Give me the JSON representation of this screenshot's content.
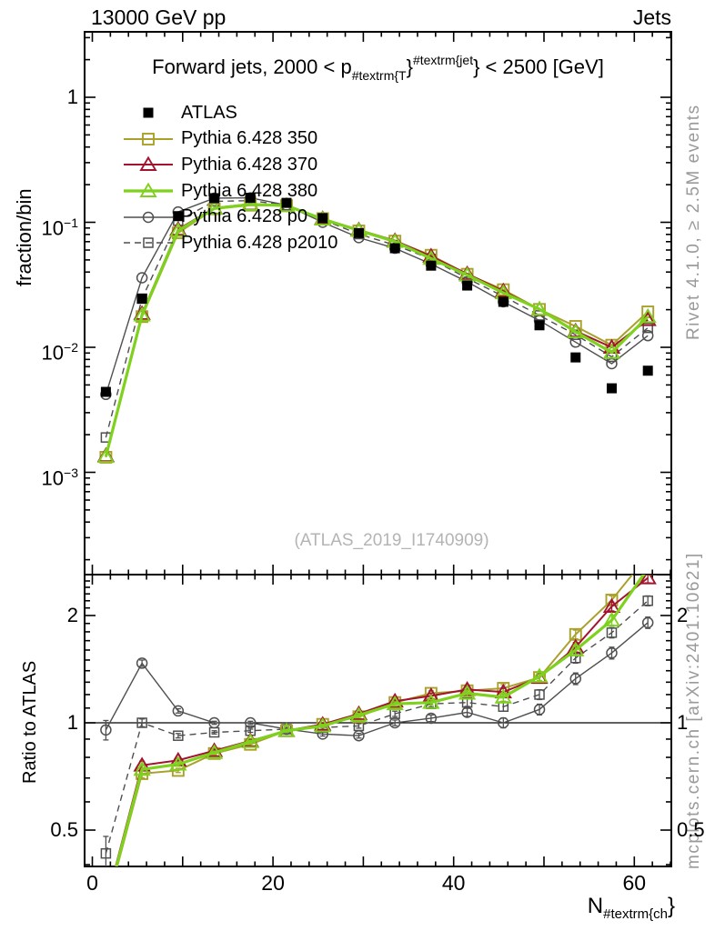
{
  "header": {
    "left": "13000 GeV pp",
    "right": "Jets"
  },
  "title": {
    "prefix": "Forward jets, 2000 < p",
    "sub": "#textrm{T",
    "brace": "}",
    "sup": "#textrm{jet",
    "suffix": "} < 2500 [GeV]"
  },
  "watermark": "(ATLAS_2019_I1740909)",
  "side_notes": {
    "top": "Rivet 4.1.0, ≥ 2.5M events",
    "bottom": "mcplots.cern.ch [arXiv:2401.10621]"
  },
  "axes": {
    "y_main_label": "fraction/bin",
    "y_ratio_label": "Ratio to ATLAS",
    "x_label": {
      "prefix": "N",
      "sub": "#textrm{ch",
      "suffix": "}"
    },
    "y_main_ticks": [
      {
        "value": 1,
        "base": "1",
        "exp": ""
      },
      {
        "value": 0.1,
        "base": "10",
        "exp": "−1"
      },
      {
        "value": 0.01,
        "base": "10",
        "exp": "−2"
      },
      {
        "value": 0.001,
        "base": "10",
        "exp": "−3"
      }
    ],
    "ratio_ticks": [
      {
        "value": 2,
        "label": "2"
      },
      {
        "value": 1,
        "label": "1"
      },
      {
        "value": 0.5,
        "label": "0.5"
      }
    ],
    "x_ticks": [
      {
        "value": 0,
        "label": "0"
      },
      {
        "value": 20,
        "label": "20"
      },
      {
        "value": 40,
        "label": "40"
      },
      {
        "value": 60,
        "label": "60"
      }
    ]
  },
  "chart_data": {
    "type": "line",
    "title": "Forward jets, 2000 < pT_jet < 2500 [GeV]",
    "xlabel": "N_ch",
    "xlim": [
      -0.85,
      64
    ],
    "x": [
      1.5,
      5.5,
      9.5,
      13.5,
      17.5,
      21.5,
      25.5,
      29.5,
      33.5,
      37.5,
      41.5,
      45.5,
      49.5,
      53.5,
      57.5,
      61.5
    ],
    "panels": {
      "main": {
        "ylabel": "fraction/bin",
        "yscale": "log",
        "ylim": [
          0.00015,
          3.3
        ],
        "grid": false
      },
      "ratio": {
        "ylabel": "Ratio to ATLAS",
        "yscale": "log",
        "ylim": [
          0.395,
          2.6
        ],
        "grid": false,
        "ref_line": 1
      }
    },
    "legend_position": "top-left",
    "series": [
      {
        "name": "ATLAS",
        "color": "#000000",
        "marker": "filled-square",
        "line": "none",
        "width": 0,
        "values": [
          0.0044,
          0.0245,
          0.112,
          0.156,
          0.157,
          0.143,
          0.108,
          0.082,
          0.062,
          0.045,
          0.0312,
          0.0231,
          0.015,
          0.0083,
          0.0047,
          0.0065
        ],
        "ratio": [],
        "ratio_err": []
      },
      {
        "name": "Pythia 6.428 350",
        "color": "#a9a12b",
        "marker": "open-square",
        "line": "solid",
        "width": 2,
        "values": [
          0.00132,
          0.0176,
          0.0823,
          0.128,
          0.137,
          0.136,
          0.107,
          0.0853,
          0.0707,
          0.0545,
          0.0384,
          0.0289,
          0.0201,
          0.0147,
          0.0104,
          0.0192
        ],
        "ratio": [
          0.3,
          0.72,
          0.735,
          0.82,
          0.87,
          0.95,
          0.99,
          1.04,
          1.14,
          1.21,
          1.23,
          1.25,
          1.34,
          1.77,
          2.21,
          2.95
        ],
        "ratio_err": [
          0.05,
          0.02,
          0.01,
          0.008,
          0.008,
          0.008,
          0.01,
          0.012,
          0.015,
          0.02,
          0.025,
          0.03,
          0.035,
          0.05,
          0.06,
          0.08
        ]
      },
      {
        "name": "Pythia 6.428 370",
        "color": "#a3132f",
        "marker": "open-triangle",
        "line": "solid",
        "width": 2,
        "values": [
          0.00136,
          0.0186,
          0.0879,
          0.13,
          0.14,
          0.136,
          0.107,
          0.0869,
          0.0713,
          0.0536,
          0.0387,
          0.0282,
          0.0201,
          0.0135,
          0.01,
          0.0166
        ],
        "ratio": [
          0.31,
          0.76,
          0.785,
          0.835,
          0.89,
          0.95,
          0.99,
          1.06,
          1.15,
          1.19,
          1.24,
          1.22,
          1.34,
          1.63,
          2.12,
          2.55
        ],
        "ratio_err": [
          0.05,
          0.02,
          0.01,
          0.008,
          0.008,
          0.008,
          0.01,
          0.012,
          0.015,
          0.02,
          0.025,
          0.03,
          0.035,
          0.05,
          0.06,
          0.08
        ]
      },
      {
        "name": "Pythia 6.428 380",
        "color": "#7ed21e",
        "marker": "open-triangle",
        "line": "solid",
        "width": 3.2,
        "values": [
          0.00134,
          0.0181,
          0.0857,
          0.129,
          0.139,
          0.136,
          0.106,
          0.0861,
          0.0701,
          0.0513,
          0.0378,
          0.0273,
          0.0202,
          0.0133,
          0.0091,
          0.0176
        ],
        "ratio": [
          0.305,
          0.74,
          0.765,
          0.825,
          0.885,
          0.95,
          0.98,
          1.05,
          1.13,
          1.14,
          1.21,
          1.18,
          1.35,
          1.6,
          1.94,
          2.71
        ],
        "ratio_err": [
          0.05,
          0.02,
          0.01,
          0.008,
          0.008,
          0.008,
          0.01,
          0.012,
          0.015,
          0.02,
          0.025,
          0.03,
          0.035,
          0.05,
          0.06,
          0.08
        ]
      },
      {
        "name": "Pythia 6.428 p0",
        "color": "#4f4f4f",
        "marker": "open-circle",
        "line": "solid",
        "width": 1.4,
        "values": [
          0.0042,
          0.036,
          0.121,
          0.156,
          0.157,
          0.137,
          0.1,
          0.0754,
          0.062,
          0.0464,
          0.0334,
          0.0231,
          0.0164,
          0.011,
          0.0074,
          0.0124
        ],
        "ratio": [
          0.955,
          1.47,
          1.08,
          1.0,
          1.0,
          0.96,
          0.93,
          0.92,
          1.0,
          1.03,
          1.07,
          1.0,
          1.09,
          1.33,
          1.57,
          1.91
        ],
        "ratio_err": [
          0.06,
          0.03,
          0.015,
          0.01,
          0.01,
          0.01,
          0.012,
          0.014,
          0.018,
          0.022,
          0.028,
          0.032,
          0.038,
          0.05,
          0.06,
          0.07
        ]
      },
      {
        "name": "Pythia 6.428 p2010",
        "color": "#4f4f4f",
        "marker": "open-small-square",
        "line": "dashed",
        "width": 1.4,
        "values": [
          0.0019,
          0.0245,
          0.103,
          0.147,
          0.149,
          0.137,
          0.105,
          0.0804,
          0.0657,
          0.0509,
          0.0356,
          0.0256,
          0.018,
          0.0126,
          0.0084,
          0.0143
        ],
        "ratio": [
          0.43,
          1.0,
          0.92,
          0.94,
          0.95,
          0.96,
          0.97,
          0.98,
          1.06,
          1.13,
          1.14,
          1.11,
          1.2,
          1.52,
          1.79,
          2.2
        ],
        "ratio_err": [
          0.05,
          0.025,
          0.013,
          0.01,
          0.01,
          0.01,
          0.012,
          0.014,
          0.018,
          0.022,
          0.028,
          0.032,
          0.038,
          0.05,
          0.06,
          0.07
        ]
      }
    ]
  }
}
